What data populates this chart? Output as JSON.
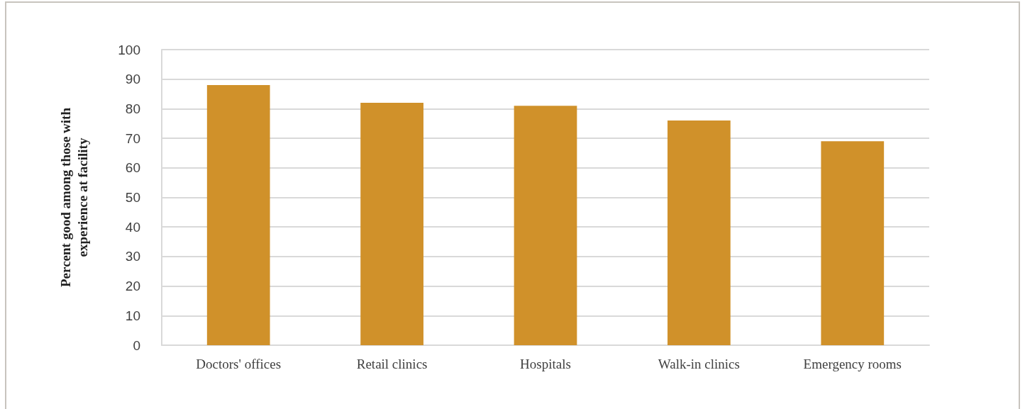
{
  "chart_data": {
    "type": "bar",
    "ylabel": "Percent good among those with experience at facility",
    "categories": [
      "Doctors' offices",
      "Retail clinics",
      "Hospitals",
      "Walk-in clinics",
      "Emergency rooms"
    ],
    "values": [
      88,
      82,
      81,
      76,
      69
    ],
    "color": "#d0912a",
    "ylim": [
      0,
      100
    ],
    "yticks": [
      0,
      10,
      20,
      30,
      40,
      50,
      60,
      70,
      80,
      90,
      100
    ],
    "grid": "y"
  }
}
